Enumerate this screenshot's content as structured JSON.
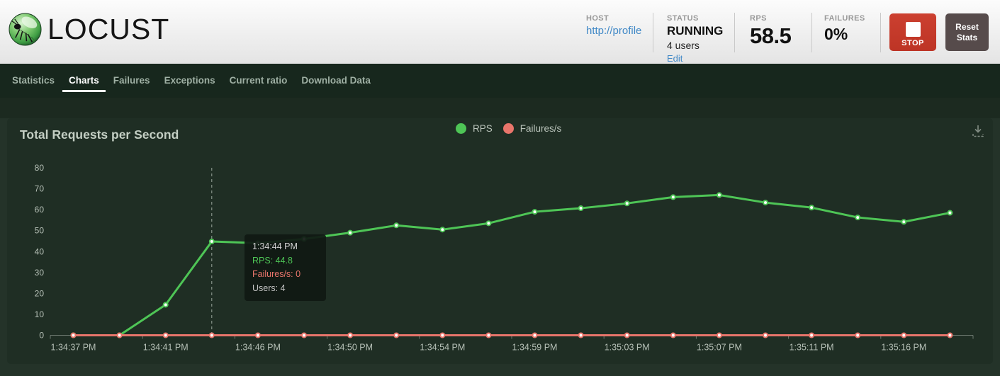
{
  "header": {
    "logo_text": "LOCUST",
    "host": {
      "label": "HOST",
      "value": "http://profile"
    },
    "status": {
      "label": "STATUS",
      "value": "RUNNING",
      "users": "4 users",
      "edit": "Edit"
    },
    "rps": {
      "label": "RPS",
      "value": "58.5"
    },
    "failures": {
      "label": "FAILURES",
      "value": "0%"
    },
    "stop_button": "STOP",
    "reset_button": "Reset Stats"
  },
  "nav": {
    "items": [
      {
        "label": "Statistics",
        "active": false
      },
      {
        "label": "Charts",
        "active": true
      },
      {
        "label": "Failures",
        "active": false
      },
      {
        "label": "Exceptions",
        "active": false
      },
      {
        "label": "Current ratio",
        "active": false
      },
      {
        "label": "Download Data",
        "active": false
      }
    ]
  },
  "chart": {
    "title": "Total Requests per Second",
    "legend": [
      {
        "label": "RPS",
        "color": "#4ec556"
      },
      {
        "label": "Failures/s",
        "color": "#e8756b"
      }
    ]
  },
  "tooltip": {
    "time": "1:34:44 PM",
    "rps": "RPS: 44.8",
    "failures": "Failures/s: 0",
    "users": "Users: 4"
  },
  "chart_data": {
    "type": "line",
    "title": "Total Requests per Second",
    "x_tick_labels": [
      "1:34:37 PM",
      "1:34:41 PM",
      "1:34:46 PM",
      "1:34:50 PM",
      "1:34:54 PM",
      "1:34:59 PM",
      "1:35:03 PM",
      "1:35:07 PM",
      "1:35:11 PM",
      "1:35:16 PM"
    ],
    "x_tick_every": 2,
    "num_points": 20,
    "ylim": [
      0,
      80
    ],
    "y_ticks": [
      0,
      10,
      20,
      30,
      40,
      50,
      60,
      70,
      80
    ],
    "grid": false,
    "legend_position": "top-center",
    "series": [
      {
        "name": "RPS",
        "color": "#4ec556",
        "values": [
          0,
          0,
          14.6,
          44.8,
          44.0,
          46.0,
          49.0,
          52.5,
          50.5,
          53.5,
          59.0,
          60.7,
          63.0,
          66.0,
          67.0,
          63.4,
          61.0,
          56.3,
          54.2,
          58.5
        ]
      },
      {
        "name": "Failures/s",
        "color": "#e8756b",
        "values": [
          0,
          0,
          0,
          0,
          0,
          0,
          0,
          0,
          0,
          0,
          0,
          0,
          0,
          0,
          0,
          0,
          0,
          0,
          0,
          0
        ]
      }
    ],
    "highlight_index": 3,
    "highlight_tooltip": {
      "time": "1:34:44 PM",
      "rps": 44.8,
      "failures_per_s": 0,
      "users": 4
    },
    "axis_colors": {
      "label": "#b6c0b7",
      "line": "#6e7970",
      "dashed_pointer": "#9aa59c"
    }
  }
}
